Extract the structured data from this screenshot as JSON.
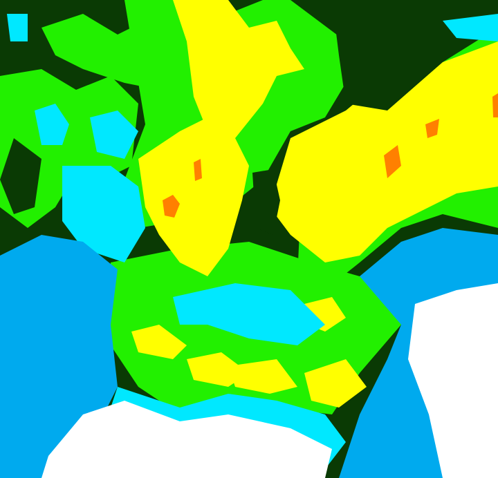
{
  "image": {
    "kind": "false-color classified satellite cloud imagery",
    "palette": {
      "dark_green": "#0a3a04",
      "green": "#22f000",
      "yellow": "#ffff00",
      "orange": "#ff8000",
      "cyan": "#00e8ff",
      "blue": "#00aaee",
      "white": "#ffffff"
    }
  }
}
